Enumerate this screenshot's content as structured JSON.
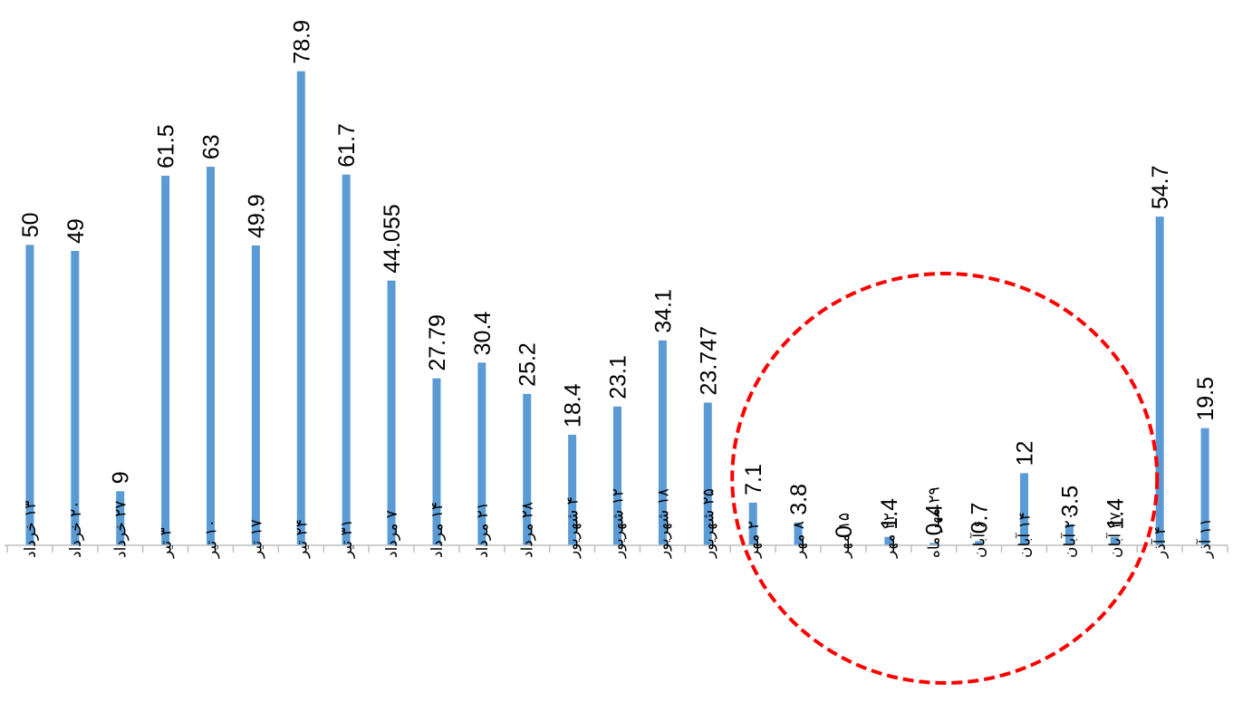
{
  "chart_data": {
    "type": "bar",
    "title": "",
    "xlabel": "",
    "ylabel": "",
    "ylim": [
      0,
      90
    ],
    "grid": false,
    "legend": "none",
    "bar_color": "#5B9BD5",
    "highlight_color": "#FF0000",
    "categories": [
      "۱۳ خرداد",
      "۲۰ خرداد",
      "۲۷ خرداد",
      "۳ تیر",
      "۱۰ تیر",
      "۱۷ تیر",
      "۲۴ تیر",
      "۳۱ تیر",
      "۷ مرداد",
      "۱۴ مرداد",
      "۲۱ مرداد",
      "۲۸ مرداد",
      "۴ شهریور",
      "۱۲ شهریور",
      "۱۸ شهریور",
      "۲۵ شهریور",
      "۲ مهر",
      "۸ مهر",
      "۱۵ مهر",
      "۲۲ مهر",
      "۲۹ مهر ماه",
      "۶ آبان",
      "۱۴ آبان",
      "۲۰ آبان",
      "۲۷ آبان",
      "۴ آذر",
      "۱۱ آذر"
    ],
    "value_labels": [
      "50",
      "49",
      "9",
      "61.5",
      "63",
      "49.9",
      "78.9",
      "61.7",
      "44.055",
      "27.79",
      "30.4",
      "25.2",
      "18.4",
      "23.1",
      "34.1",
      "23.747",
      "7.1",
      "3.8",
      "0",
      "1.4",
      "0.4",
      "0.7",
      "12",
      "3.5",
      "1.4",
      "54.7",
      "19.5"
    ],
    "values": [
      50,
      49,
      9,
      61.5,
      63,
      49.9,
      78.9,
      61.7,
      44.055,
      27.79,
      30.4,
      25.2,
      18.4,
      23.1,
      34.1,
      23.747,
      7.1,
      3.8,
      0,
      1.4,
      0.4,
      0.7,
      12,
      3.5,
      1.4,
      54.7,
      19.5
    ],
    "highlight_range": [
      16,
      24
    ]
  }
}
